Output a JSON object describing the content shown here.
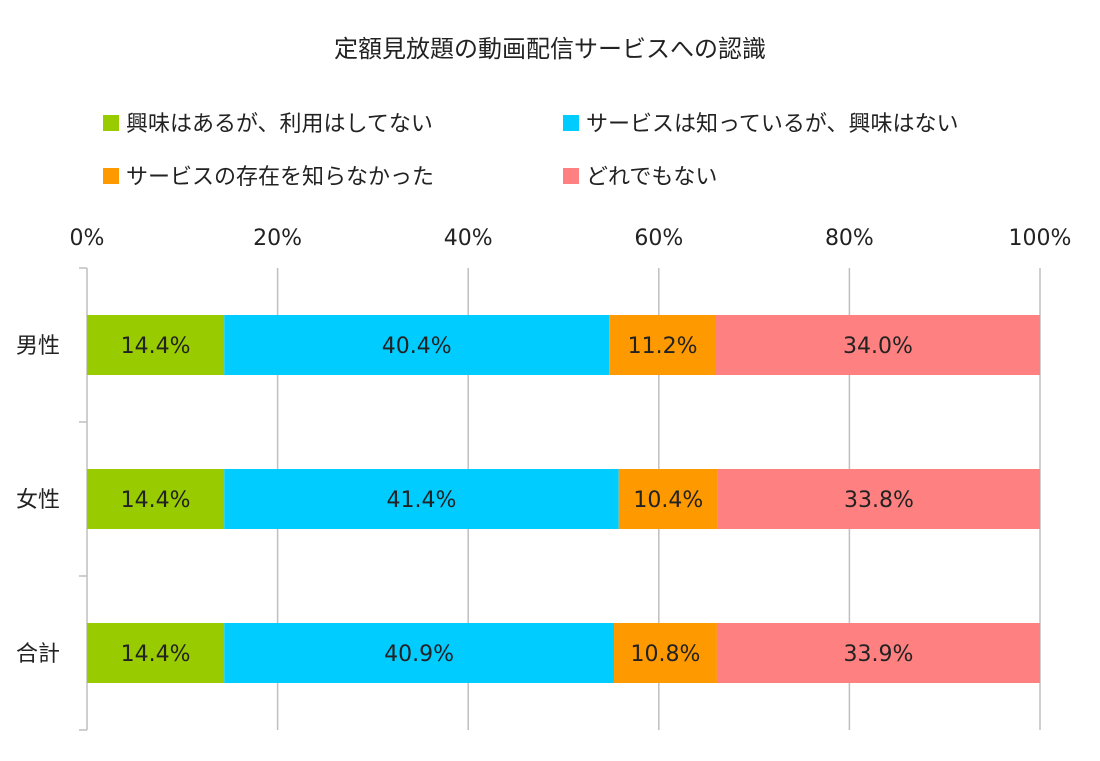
{
  "chart_data": {
    "type": "bar",
    "orientation": "horizontal",
    "stacked": true,
    "title": "定額見放題の動画配信サービスへの認識",
    "categories": [
      "男性",
      "女性",
      "合計"
    ],
    "series": [
      {
        "name": "興味はあるが、利用はしてない",
        "color": "#99CC00",
        "values": [
          14.4,
          14.4,
          14.4
        ],
        "labels": [
          "14.4%",
          "14.4%",
          "14.4%"
        ]
      },
      {
        "name": "サービスは知っているが、興味はない",
        "color": "#00CCFF",
        "values": [
          40.4,
          41.4,
          40.9
        ],
        "labels": [
          "40.4%",
          "41.4%",
          "40.9%"
        ]
      },
      {
        "name": "サービスの存在を知らなかった",
        "color": "#FF9900",
        "values": [
          11.2,
          10.4,
          10.8
        ],
        "labels": [
          "11.2%",
          "10.4%",
          "10.8%"
        ]
      },
      {
        "name": "どれでもない",
        "color": "#FF8080",
        "values": [
          34.0,
          33.8,
          33.9
        ],
        "labels": [
          "34.0%",
          "33.8%",
          "33.9%"
        ]
      }
    ],
    "xlim": [
      0,
      100
    ],
    "ticks": [
      0,
      20,
      40,
      60,
      80,
      100
    ],
    "tick_labels": [
      "0%",
      "20%",
      "40%",
      "60%",
      "80%",
      "100%"
    ],
    "axis_position": "top",
    "grid": true,
    "legend": "top",
    "grid_color": "#BFBFBF"
  }
}
